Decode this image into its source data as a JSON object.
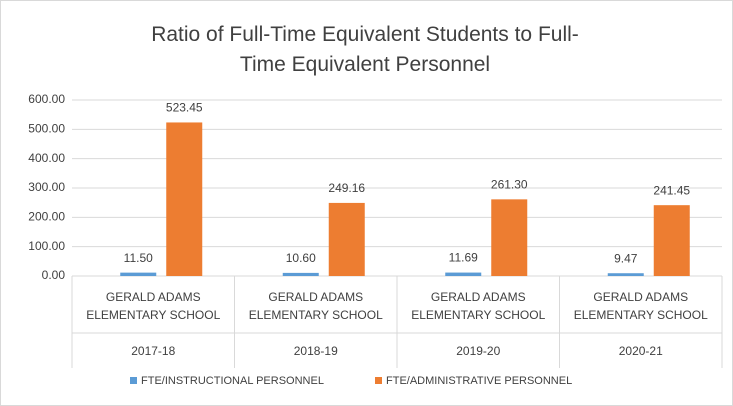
{
  "chart_data": {
    "type": "bar",
    "title": "Ratio of Full-Time Equivalent Students to Full-Time Equivalent Personnel",
    "categories": [
      "2017-18",
      "2018-19",
      "2019-20",
      "2020-21"
    ],
    "subcategories": [
      "GERALD ADAMS ELEMENTARY SCHOOL",
      "GERALD ADAMS ELEMENTARY SCHOOL",
      "GERALD ADAMS ELEMENTARY SCHOOL",
      "GERALD ADAMS ELEMENTARY SCHOOL"
    ],
    "series": [
      {
        "name": "FTE/INSTRUCTIONAL PERSONNEL",
        "color": "#5b9bd5",
        "values": [
          11.5,
          10.6,
          11.69,
          9.47
        ],
        "value_labels": [
          "11.50",
          "10.60",
          "11.69",
          "9.47"
        ]
      },
      {
        "name": "FTE/ADMINISTRATIVE PERSONNEL",
        "color": "#ed7d31",
        "values": [
          523.45,
          249.16,
          261.3,
          241.45
        ],
        "value_labels": [
          "523.45",
          "249.16",
          "261.30",
          "241.45"
        ]
      }
    ],
    "ylim": [
      0,
      600
    ],
    "yticks": [
      {
        "value": 0,
        "label": "0.00"
      },
      {
        "value": 100,
        "label": "100.00"
      },
      {
        "value": 200,
        "label": "200.00"
      },
      {
        "value": 300,
        "label": "300.00"
      },
      {
        "value": 400,
        "label": "400.00"
      },
      {
        "value": 500,
        "label": "500.00"
      },
      {
        "value": 600,
        "label": "600.00"
      }
    ],
    "grid": true,
    "legend": "bottom"
  }
}
